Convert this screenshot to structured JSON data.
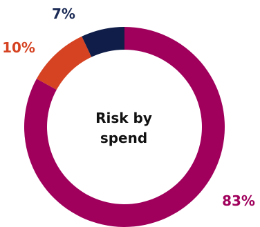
{
  "chart_data": {
    "type": "pie",
    "variant": "donut",
    "center_label_lines": [
      "Risk by",
      "spend"
    ],
    "start": "top, clockwise",
    "slices": [
      {
        "label": "83%",
        "value": 83,
        "color": "#A0005C"
      },
      {
        "label": "10%",
        "value": 10,
        "color": "#D54322"
      },
      {
        "label": "7%",
        "value": 7,
        "color": "#0F1D48"
      }
    ],
    "label_colors": [
      "#A0005C",
      "#D54322",
      "#1B2A55"
    ],
    "legend": "none"
  }
}
